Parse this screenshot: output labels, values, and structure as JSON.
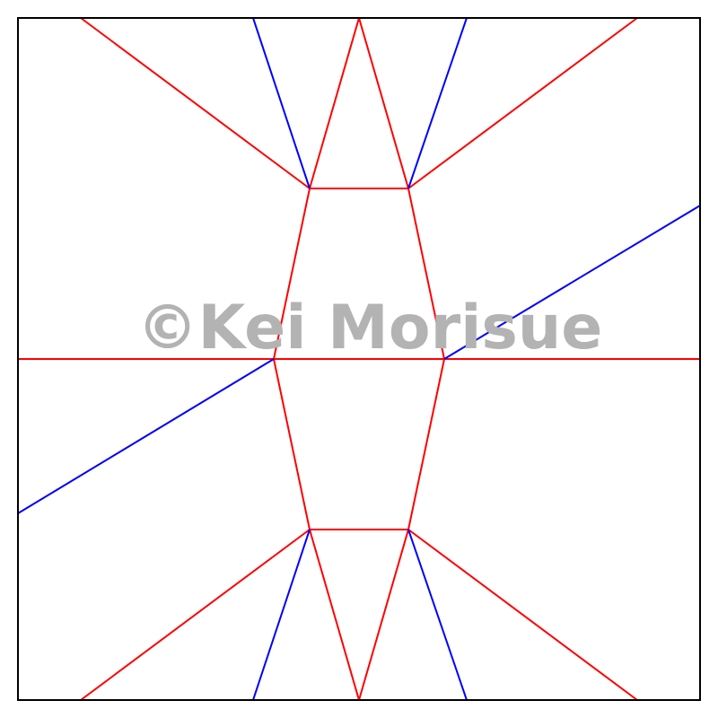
{
  "diagram": {
    "kind": "origami crease pattern",
    "colors": {
      "border": "#000000",
      "mountain": "#ff0000",
      "valley": "#0000ff",
      "watermark": "#b3b3b3"
    }
  },
  "watermark": {
    "text": "©Kei Morisue"
  }
}
